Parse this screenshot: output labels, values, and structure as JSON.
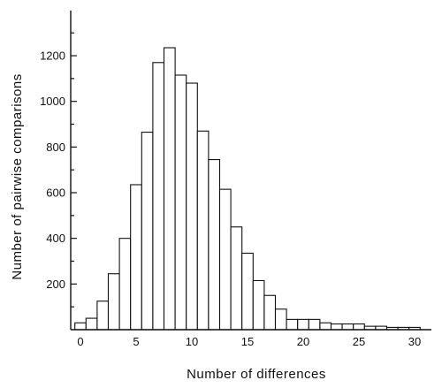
{
  "chart_data": {
    "type": "bar",
    "title": "",
    "xlabel": "Number of differences",
    "ylabel": "Number of pairwise comparisons",
    "x": [
      0,
      1,
      2,
      3,
      4,
      5,
      6,
      7,
      8,
      9,
      10,
      11,
      12,
      13,
      14,
      15,
      16,
      17,
      18,
      19,
      20,
      21,
      22,
      23,
      24,
      25,
      26,
      27,
      28,
      29,
      30
    ],
    "values": [
      30,
      50,
      125,
      245,
      400,
      635,
      865,
      1170,
      1235,
      1115,
      1080,
      870,
      745,
      615,
      450,
      335,
      215,
      150,
      90,
      45,
      45,
      45,
      30,
      25,
      25,
      25,
      15,
      15,
      10,
      10,
      10
    ],
    "xlim": [
      -0.5,
      31
    ],
    "ylim": [
      0,
      1400
    ],
    "xticks": [
      0,
      5,
      10,
      15,
      20,
      25,
      30
    ],
    "yticks": [
      200,
      400,
      600,
      800,
      1000,
      1200
    ],
    "grid": false
  }
}
